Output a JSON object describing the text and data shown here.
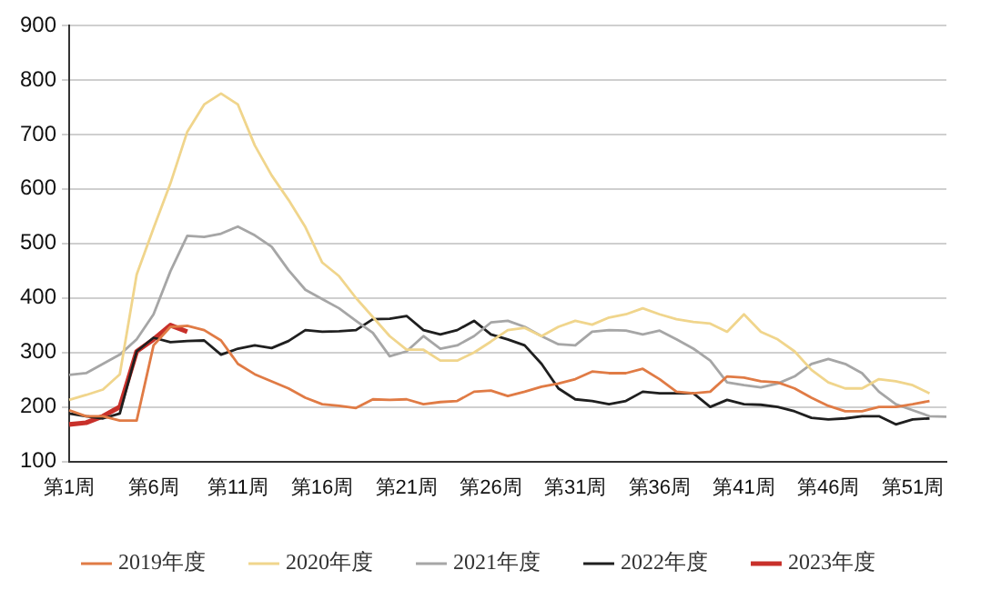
{
  "chart_data": {
    "type": "line",
    "categories": [
      "第1周",
      null,
      null,
      null,
      null,
      "第6周",
      null,
      null,
      null,
      null,
      "第11周",
      null,
      null,
      null,
      null,
      "第16周",
      null,
      null,
      null,
      null,
      "第21周",
      null,
      null,
      null,
      null,
      "第26周",
      null,
      null,
      null,
      null,
      "第31周",
      null,
      null,
      null,
      null,
      "第36周",
      null,
      null,
      null,
      null,
      "第41周",
      null,
      null,
      null,
      null,
      "第46周",
      null,
      null,
      null,
      null,
      "第51周",
      null,
      null
    ],
    "ylim": [
      100,
      900
    ],
    "yticks": [
      100,
      200,
      300,
      400,
      500,
      600,
      700,
      800,
      900
    ],
    "grid": "y",
    "legend": "bottom",
    "marker": "none",
    "line_style": "solid",
    "series": [
      {
        "name": "2019年度",
        "color": "#e07b45",
        "values": [
          194,
          183,
          183,
          175,
          175,
          313,
          347,
          349,
          341,
          322,
          279,
          260,
          247,
          234,
          217,
          205,
          202,
          198,
          214,
          213,
          214,
          205,
          209,
          211,
          228,
          230,
          220,
          228,
          237,
          243,
          251,
          265,
          262,
          262,
          270,
          251,
          228,
          225,
          228,
          256,
          254,
          247,
          245,
          234,
          217,
          202,
          192,
          192,
          200,
          200,
          205,
          211,
          null
        ]
      },
      {
        "name": "2020年度",
        "color": "#f0d58c",
        "values": [
          213,
          222,
          232,
          260,
          443,
          528,
          610,
          705,
          755,
          775,
          755,
          680,
          625,
          580,
          530,
          465,
          440,
          400,
          365,
          330,
          305,
          305,
          285,
          285,
          300,
          320,
          341,
          345,
          330,
          347,
          358,
          351,
          364,
          370,
          381,
          370,
          361,
          356,
          353,
          338,
          370,
          338,
          324,
          302,
          268,
          245,
          234,
          234,
          251,
          247,
          240,
          225,
          null
        ]
      },
      {
        "name": "2021年度",
        "color": "#a6a6a6",
        "values": [
          259,
          262,
          279,
          296,
          324,
          370,
          449,
          514,
          512,
          518,
          531,
          515,
          494,
          451,
          415,
          398,
          381,
          358,
          336,
          293,
          302,
          330,
          307,
          313,
          330,
          355,
          358,
          347,
          330,
          315,
          313,
          338,
          341,
          340,
          333,
          340,
          324,
          307,
          285,
          245,
          240,
          236,
          243,
          256,
          279,
          288,
          279,
          262,
          228,
          205,
          194,
          183,
          182
        ]
      },
      {
        "name": "2022年度",
        "color": "#1f1f1f",
        "values": [
          188,
          183,
          179,
          188,
          302,
          327,
          319,
          321,
          322,
          296,
          307,
          313,
          308,
          321,
          341,
          338,
          339,
          341,
          361,
          362,
          367,
          341,
          333,
          341,
          358,
          333,
          324,
          313,
          279,
          234,
          214,
          211,
          205,
          211,
          228,
          225,
          225,
          225,
          200,
          213,
          205,
          204,
          200,
          192,
          180,
          177,
          179,
          183,
          183,
          168,
          177,
          179,
          null
        ]
      },
      {
        "name": "2023年度",
        "color": "#c8302a",
        "values": [
          168,
          171,
          183,
          200,
          302,
          324,
          350,
          338,
          null,
          null,
          null,
          null,
          null,
          null,
          null,
          null,
          null,
          null,
          null,
          null,
          null,
          null,
          null,
          null,
          null,
          null,
          null,
          null,
          null,
          null,
          null,
          null,
          null,
          null,
          null,
          null,
          null,
          null,
          null,
          null,
          null,
          null,
          null,
          null,
          null,
          null,
          null,
          null,
          null,
          null,
          null,
          null,
          null
        ]
      }
    ]
  }
}
